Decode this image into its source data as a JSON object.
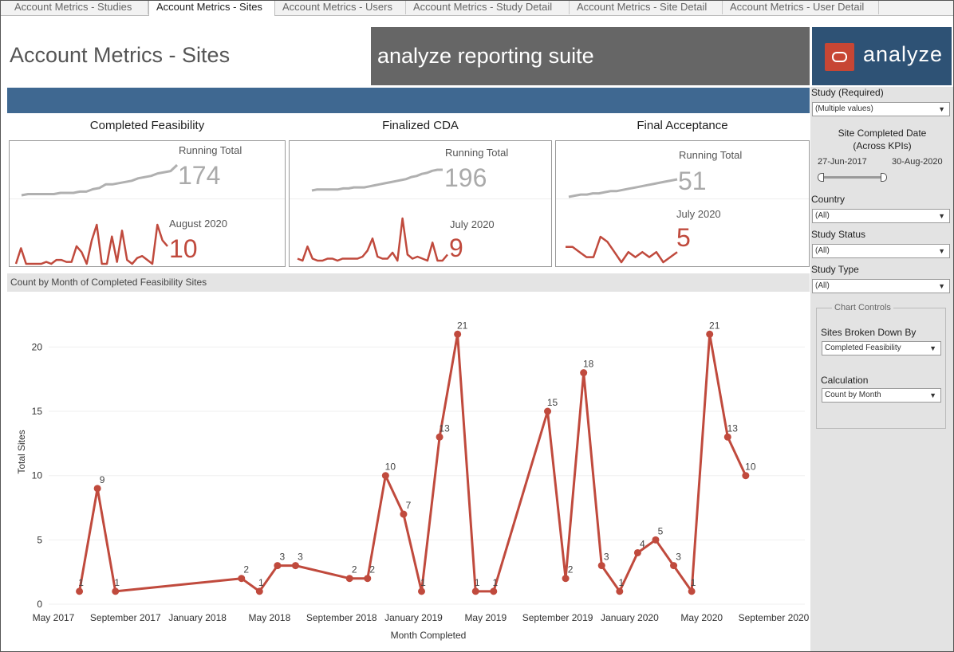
{
  "tabs": [
    {
      "label": "Account Metrics - Studies",
      "left": 0
    },
    {
      "label": "Account Metrics - Sites",
      "active": true
    },
    {
      "label": "Account Metrics - Users"
    },
    {
      "label": "Account Metrics - Study Detail"
    },
    {
      "label": "Account Metrics - Site Detail"
    },
    {
      "label": "Account Metrics - User Detail"
    }
  ],
  "header": {
    "page_title": "Account Metrics - Sites",
    "banner_text": "analyze reporting suite",
    "logo_text": "analyze"
  },
  "kpis": [
    {
      "title": "Completed Feasibility",
      "running_total_label": "Running Total",
      "running_total": "174",
      "period_label": "August 2020",
      "period_value": "10",
      "running_series": [
        0,
        1,
        1,
        1,
        1,
        1,
        2,
        2,
        2,
        3,
        3,
        5,
        6,
        9,
        9,
        10,
        11,
        12,
        14,
        15,
        16,
        18,
        19,
        20,
        25
      ],
      "monthly_series": [
        1,
        9,
        1,
        1,
        1,
        1,
        2,
        1,
        3,
        3,
        2,
        2,
        10,
        7,
        1,
        13,
        21,
        1,
        1,
        15,
        2,
        18,
        3,
        1,
        4,
        5,
        3,
        1,
        21,
        13,
        10
      ]
    },
    {
      "title": "Finalized CDA",
      "running_total_label": "Running Total",
      "running_total": "196",
      "period_label": "July 2020",
      "period_value": "9",
      "running_series": [
        0,
        1,
        1,
        1,
        1,
        1,
        2,
        2,
        3,
        3,
        3,
        4,
        5,
        6,
        7,
        8,
        9,
        10,
        11,
        13,
        14,
        16,
        17,
        19,
        20,
        20
      ],
      "monthly_series": [
        2,
        1,
        8,
        2,
        1,
        1,
        2,
        2,
        1,
        2,
        2,
        2,
        2,
        3,
        6,
        12,
        3,
        2,
        2,
        5,
        1,
        22,
        4,
        2,
        3,
        2,
        1,
        10,
        1,
        1,
        4
      ]
    },
    {
      "title": "Final Acceptance",
      "running_total_label": "Running Total",
      "running_total": "51",
      "period_label": "July 2020",
      "period_value": "5",
      "running_series": [
        0,
        1,
        2,
        2,
        3,
        3,
        4,
        5,
        5,
        6,
        7,
        8,
        9,
        10,
        11,
        12,
        13,
        14,
        15
      ],
      "monthly_series": [
        3,
        3,
        2,
        1,
        1,
        5,
        4,
        2,
        0,
        2,
        1,
        2,
        1,
        2,
        0,
        1,
        2
      ]
    }
  ],
  "chart_data": {
    "type": "line",
    "title": "Count by Month of Completed Feasibility Sites",
    "xlabel": "Month Completed",
    "ylabel": "Total Sites",
    "ylim": [
      0,
      23
    ],
    "y_ticks": [
      0,
      5,
      10,
      15,
      20
    ],
    "x_tick_labels": [
      "May 2017",
      "September 2017",
      "January 2018",
      "May 2018",
      "September 2018",
      "January 2019",
      "May 2019",
      "September 2019",
      "January 2020",
      "May 2020",
      "September 2020"
    ],
    "x_range": [
      "2017-05",
      "2020-09"
    ],
    "x": [
      "2017-06",
      "2017-07",
      "2017-08",
      "2018-03",
      "2018-04",
      "2018-05",
      "2018-06",
      "2018-09",
      "2018-10",
      "2018-11",
      "2018-12",
      "2019-01",
      "2019-02",
      "2019-03",
      "2019-04",
      "2019-05",
      "2019-08",
      "2019-09",
      "2019-10",
      "2019-11",
      "2019-12",
      "2020-01",
      "2020-02",
      "2020-03",
      "2020-04",
      "2020-05",
      "2020-06",
      "2020-07",
      "2020-08"
    ],
    "values": [
      1,
      9,
      1,
      2,
      1,
      3,
      3,
      2,
      2,
      10,
      7,
      1,
      13,
      21,
      1,
      1,
      15,
      2,
      18,
      3,
      1,
      4,
      5,
      3,
      1,
      21,
      13,
      10,
      null
    ],
    "color": "#c04a3d",
    "grid": true
  },
  "filters": {
    "study_label": "Study (Required)",
    "study_value": "(Multiple values)",
    "date_label": "Site Completed Date (Across KPIs)",
    "date_start": "27-Jun-2017",
    "date_end": "30-Aug-2020",
    "country_label": "Country",
    "country_value": "(All)",
    "status_label": "Study Status",
    "status_value": "(All)",
    "type_label": "Study Type",
    "type_value": "(All)"
  },
  "chart_controls": {
    "title": "Chart Controls",
    "breakdown_label": "Sites Broken Down By",
    "breakdown_value": "Completed Feasibility",
    "calc_label": "Calculation",
    "calc_value": "Count by Month"
  },
  "colors": {
    "accent_red": "#c04a3d",
    "banner_blue": "#3f6891",
    "logo_red": "#c74634"
  }
}
